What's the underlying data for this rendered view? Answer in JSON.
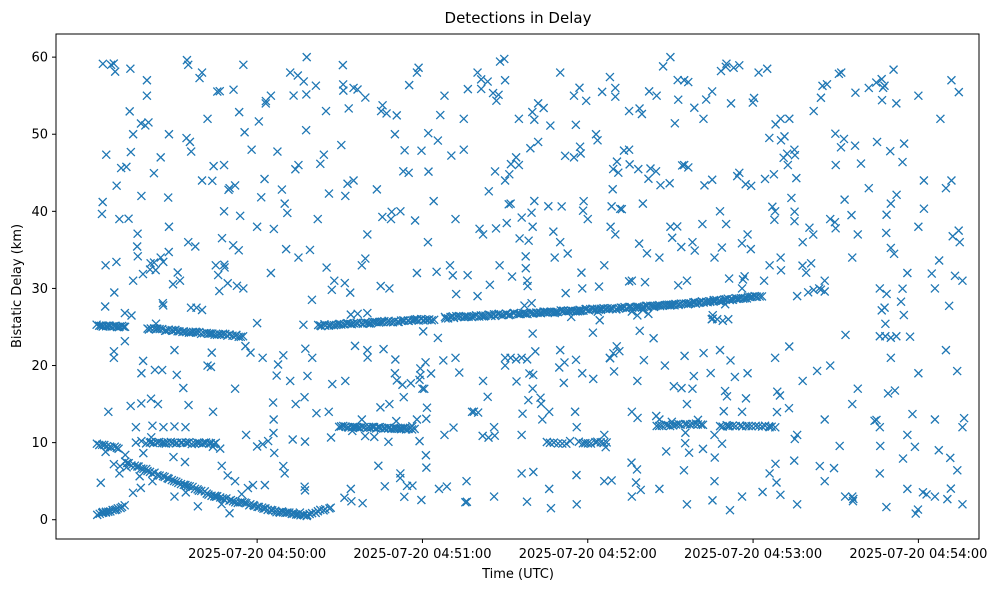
{
  "chart_data": {
    "type": "scatter",
    "title": "Detections in Delay",
    "xlabel": "Time (UTC)",
    "ylabel": "Bistatic Delay (km)",
    "marker": "x",
    "color": "#1f77b4",
    "x_unit": "seconds after 2025-07-20 04:49:00",
    "xlim": [
      -13,
      322
    ],
    "ylim": [
      -2.5,
      63.0
    ],
    "x_ticks": [
      {
        "value": 60,
        "label": "2025-07-20 04:50:00"
      },
      {
        "value": 120,
        "label": "2025-07-20 04:51:00"
      },
      {
        "value": 180,
        "label": "2025-07-20 04:52:00"
      },
      {
        "value": 240,
        "label": "2025-07-20 04:53:00"
      },
      {
        "value": 300,
        "label": "2025-07-20 04:54:00"
      }
    ],
    "y_ticks": [
      {
        "value": 0,
        "label": "0"
      },
      {
        "value": 10,
        "label": "10"
      },
      {
        "value": 20,
        "label": "20"
      },
      {
        "value": 30,
        "label": "30"
      },
      {
        "value": 40,
        "label": "40"
      },
      {
        "value": 50,
        "label": "50"
      },
      {
        "value": 60,
        "label": "60"
      }
    ],
    "grid": false,
    "time_range": {
      "start_s": 2,
      "end_s": 318
    },
    "tracks": [
      {
        "name": "track-a",
        "segments": [
          {
            "t0": 2,
            "t1": 12,
            "y0": 25.2,
            "y1": 25.0,
            "n": 18
          },
          {
            "t0": 20,
            "t1": 55,
            "y0": 24.8,
            "y1": 23.8,
            "n": 45
          },
          {
            "t0": 82,
            "t1": 124,
            "y0": 25.2,
            "y1": 26.0,
            "n": 58
          },
          {
            "t0": 128,
            "t1": 210,
            "y0": 26.2,
            "y1": 27.8,
            "n": 120
          },
          {
            "t0": 210,
            "t1": 243,
            "y0": 27.8,
            "y1": 29.0,
            "n": 50
          }
        ]
      },
      {
        "name": "track-b",
        "segments": [
          {
            "t0": 2,
            "t1": 10,
            "y0": 9.8,
            "y1": 9.3,
            "n": 10
          },
          {
            "t0": 20,
            "t1": 45,
            "y0": 10.0,
            "y1": 9.9,
            "n": 30
          },
          {
            "t0": 90,
            "t1": 117,
            "y0": 12.1,
            "y1": 11.8,
            "n": 40
          },
          {
            "t0": 165,
            "t1": 172,
            "y0": 10.0,
            "y1": 9.8,
            "n": 6
          },
          {
            "t0": 177,
            "t1": 187,
            "y0": 10.0,
            "y1": 10.0,
            "n": 10
          },
          {
            "t0": 205,
            "t1": 222,
            "y0": 12.2,
            "y1": 12.4,
            "n": 18
          },
          {
            "t0": 228,
            "t1": 248,
            "y0": 12.2,
            "y1": 12.1,
            "n": 18
          }
        ]
      },
      {
        "name": "track-c",
        "segments": [
          {
            "t0": 12,
            "t1": 45,
            "y0": 7.5,
            "y1": 3.0,
            "n": 40
          },
          {
            "t0": 45,
            "t1": 68,
            "y0": 3.0,
            "y1": 1.0,
            "n": 30
          },
          {
            "t0": 68,
            "t1": 78,
            "y0": 1.0,
            "y1": 0.6,
            "n": 14
          }
        ]
      },
      {
        "name": "track-d",
        "segments": [
          {
            "t0": 2,
            "t1": 12,
            "y0": 0.6,
            "y1": 1.8,
            "n": 14
          },
          {
            "t0": 78,
            "t1": 87,
            "y0": 0.6,
            "y1": 1.6,
            "n": 10
          }
        ]
      }
    ],
    "clutter_points": [
      [
        7,
        59
      ],
      [
        14,
        58.5
      ],
      [
        20,
        57
      ],
      [
        20,
        55
      ],
      [
        35,
        59
      ],
      [
        40,
        58
      ],
      [
        55,
        59
      ],
      [
        42,
        52
      ],
      [
        28,
        50
      ],
      [
        15,
        50
      ],
      [
        25,
        47
      ],
      [
        48,
        46
      ],
      [
        50,
        43
      ],
      [
        65,
        55
      ],
      [
        72,
        58
      ],
      [
        78,
        60
      ],
      [
        85,
        53
      ],
      [
        95,
        56
      ],
      [
        105,
        53
      ],
      [
        110,
        50
      ],
      [
        118,
        58
      ],
      [
        128,
        55
      ],
      [
        135,
        52
      ],
      [
        140,
        58
      ],
      [
        150,
        57
      ],
      [
        155,
        52
      ],
      [
        162,
        54
      ],
      [
        170,
        58
      ],
      [
        175,
        55
      ],
      [
        183,
        50
      ],
      [
        190,
        56
      ],
      [
        195,
        53
      ],
      [
        205,
        55
      ],
      [
        210,
        60
      ],
      [
        215,
        57
      ],
      [
        222,
        52
      ],
      [
        232,
        54
      ],
      [
        242,
        58
      ],
      [
        250,
        52
      ],
      [
        262,
        53
      ],
      [
        272,
        58
      ],
      [
        282,
        56
      ],
      [
        292,
        54
      ],
      [
        300,
        55
      ],
      [
        312,
        57
      ],
      [
        308,
        52
      ],
      [
        285,
        49
      ],
      [
        270,
        46
      ],
      [
        255,
        48
      ],
      [
        235,
        45
      ],
      [
        215,
        46
      ],
      [
        195,
        48
      ],
      [
        175,
        47
      ],
      [
        155,
        46
      ],
      [
        135,
        48
      ],
      [
        115,
        45
      ],
      [
        95,
        44
      ],
      [
        75,
        46
      ],
      [
        58,
        48
      ],
      [
        40,
        44
      ],
      [
        18,
        42
      ],
      [
        28,
        38
      ],
      [
        35,
        36
      ],
      [
        10,
        39
      ],
      [
        48,
        40
      ],
      [
        60,
        38
      ],
      [
        70,
        41
      ],
      [
        82,
        39
      ],
      [
        92,
        42
      ],
      [
        100,
        37
      ],
      [
        112,
        40
      ],
      [
        122,
        36
      ],
      [
        132,
        39
      ],
      [
        142,
        37
      ],
      [
        152,
        41
      ],
      [
        160,
        38
      ],
      [
        170,
        36
      ],
      [
        180,
        39
      ],
      [
        190,
        37
      ],
      [
        200,
        41
      ],
      [
        210,
        38
      ],
      [
        218,
        36
      ],
      [
        228,
        40
      ],
      [
        238,
        37
      ],
      [
        248,
        40
      ],
      [
        258,
        36
      ],
      [
        268,
        39
      ],
      [
        278,
        37
      ],
      [
        290,
        41
      ],
      [
        300,
        38
      ],
      [
        310,
        43
      ],
      [
        315,
        36
      ],
      [
        5,
        33
      ],
      [
        15,
        31
      ],
      [
        25,
        34
      ],
      [
        32,
        31
      ],
      [
        45,
        33
      ],
      [
        55,
        30
      ],
      [
        65,
        32
      ],
      [
        75,
        34
      ],
      [
        88,
        31
      ],
      [
        98,
        33
      ],
      [
        108,
        30
      ],
      [
        118,
        32
      ],
      [
        130,
        33
      ],
      [
        140,
        29
      ],
      [
        148,
        33
      ],
      [
        158,
        31
      ],
      [
        168,
        34
      ],
      [
        178,
        30
      ],
      [
        186,
        33
      ],
      [
        196,
        31
      ],
      [
        206,
        34
      ],
      [
        216,
        31
      ],
      [
        226,
        34
      ],
      [
        236,
        30
      ],
      [
        246,
        33
      ],
      [
        256,
        29
      ],
      [
        266,
        31
      ],
      [
        276,
        34
      ],
      [
        286,
        30
      ],
      [
        296,
        32
      ],
      [
        306,
        30
      ],
      [
        316,
        31
      ],
      [
        8,
        21
      ],
      [
        18,
        19
      ],
      [
        30,
        22
      ],
      [
        42,
        20
      ],
      [
        52,
        17
      ],
      [
        62,
        21
      ],
      [
        72,
        18
      ],
      [
        80,
        21
      ],
      [
        92,
        18
      ],
      [
        100,
        22
      ],
      [
        110,
        19
      ],
      [
        120,
        17
      ],
      [
        132,
        21
      ],
      [
        142,
        18
      ],
      [
        150,
        20
      ],
      [
        160,
        17
      ],
      [
        170,
        22
      ],
      [
        178,
        19
      ],
      [
        188,
        21
      ],
      [
        198,
        18
      ],
      [
        208,
        20
      ],
      [
        218,
        17
      ],
      [
        228,
        22
      ],
      [
        238,
        19
      ],
      [
        248,
        21
      ],
      [
        258,
        18
      ],
      [
        268,
        20
      ],
      [
        278,
        17
      ],
      [
        290,
        21
      ],
      [
        300,
        19
      ],
      [
        310,
        22
      ],
      [
        6,
        14
      ],
      [
        16,
        12
      ],
      [
        24,
        15
      ],
      [
        34,
        12
      ],
      [
        44,
        14
      ],
      [
        56,
        11
      ],
      [
        66,
        13
      ],
      [
        74,
        15
      ],
      [
        86,
        14
      ],
      [
        98,
        13
      ],
      [
        108,
        15
      ],
      [
        118,
        13
      ],
      [
        128,
        11
      ],
      [
        138,
        14
      ],
      [
        146,
        12
      ],
      [
        156,
        11
      ],
      [
        166,
        14
      ],
      [
        176,
        12
      ],
      [
        186,
        11
      ],
      [
        196,
        14
      ],
      [
        206,
        13
      ],
      [
        216,
        15
      ],
      [
        226,
        11
      ],
      [
        236,
        14
      ],
      [
        246,
        12
      ],
      [
        256,
        11
      ],
      [
        266,
        13
      ],
      [
        276,
        15
      ],
      [
        286,
        12
      ],
      [
        296,
        11
      ],
      [
        306,
        13
      ],
      [
        316,
        12
      ],
      [
        10,
        6
      ],
      [
        22,
        5
      ],
      [
        30,
        3
      ],
      [
        52,
        5
      ],
      [
        70,
        6
      ],
      [
        94,
        4
      ],
      [
        104,
        7
      ],
      [
        112,
        6
      ],
      [
        126,
        4
      ],
      [
        136,
        5
      ],
      [
        146,
        3
      ],
      [
        156,
        6
      ],
      [
        166,
        4
      ],
      [
        176,
        2
      ],
      [
        186,
        5
      ],
      [
        196,
        3
      ],
      [
        206,
        4
      ],
      [
        216,
        2
      ],
      [
        226,
        5
      ],
      [
        236,
        3
      ],
      [
        246,
        6
      ],
      [
        256,
        2
      ],
      [
        266,
        5
      ],
      [
        276,
        3
      ],
      [
        286,
        6
      ],
      [
        296,
        4
      ],
      [
        306,
        3
      ],
      [
        316,
        2
      ],
      [
        150,
        21
      ],
      [
        152,
        21
      ],
      [
        154,
        20.8
      ],
      [
        156,
        21
      ],
      [
        158,
        20.8
      ],
      [
        286,
        23.8
      ],
      [
        288,
        23.8
      ],
      [
        290,
        23.6
      ],
      [
        292,
        23.8
      ],
      [
        260,
        29.5
      ],
      [
        262,
        29.8
      ],
      [
        264,
        30
      ],
      [
        266,
        29.6
      ],
      [
        225,
        26
      ],
      [
        227,
        26
      ],
      [
        229,
        25.8
      ],
      [
        231,
        26
      ],
      [
        100,
        26.8
      ],
      [
        60,
        25.5
      ],
      [
        36,
        27.5
      ],
      [
        38,
        27.5
      ],
      [
        40,
        27.2
      ],
      [
        16,
        10
      ],
      [
        18,
        10.2
      ],
      [
        22,
        12.2
      ],
      [
        26,
        12
      ],
      [
        30,
        12.1
      ],
      [
        60,
        9.5
      ],
      [
        62,
        9.8
      ],
      [
        64,
        10.2
      ],
      [
        4,
        1.0
      ],
      [
        5,
        8.8
      ],
      [
        8,
        7.2
      ],
      [
        12,
        26.8
      ],
      [
        150,
        44
      ],
      [
        154,
        47
      ],
      [
        162,
        49
      ],
      [
        244,
        31
      ],
      [
        250,
        34
      ],
      [
        282,
        43
      ],
      [
        302,
        44
      ],
      [
        312,
        44
      ],
      [
        196,
        27
      ],
      [
        198,
        26.5
      ],
      [
        200,
        27.2
      ],
      [
        202,
        26.7
      ],
      [
        204,
        27.6
      ],
      [
        174,
        26.3
      ],
      [
        176,
        27.1
      ],
      [
        168,
        26.8
      ]
    ]
  }
}
